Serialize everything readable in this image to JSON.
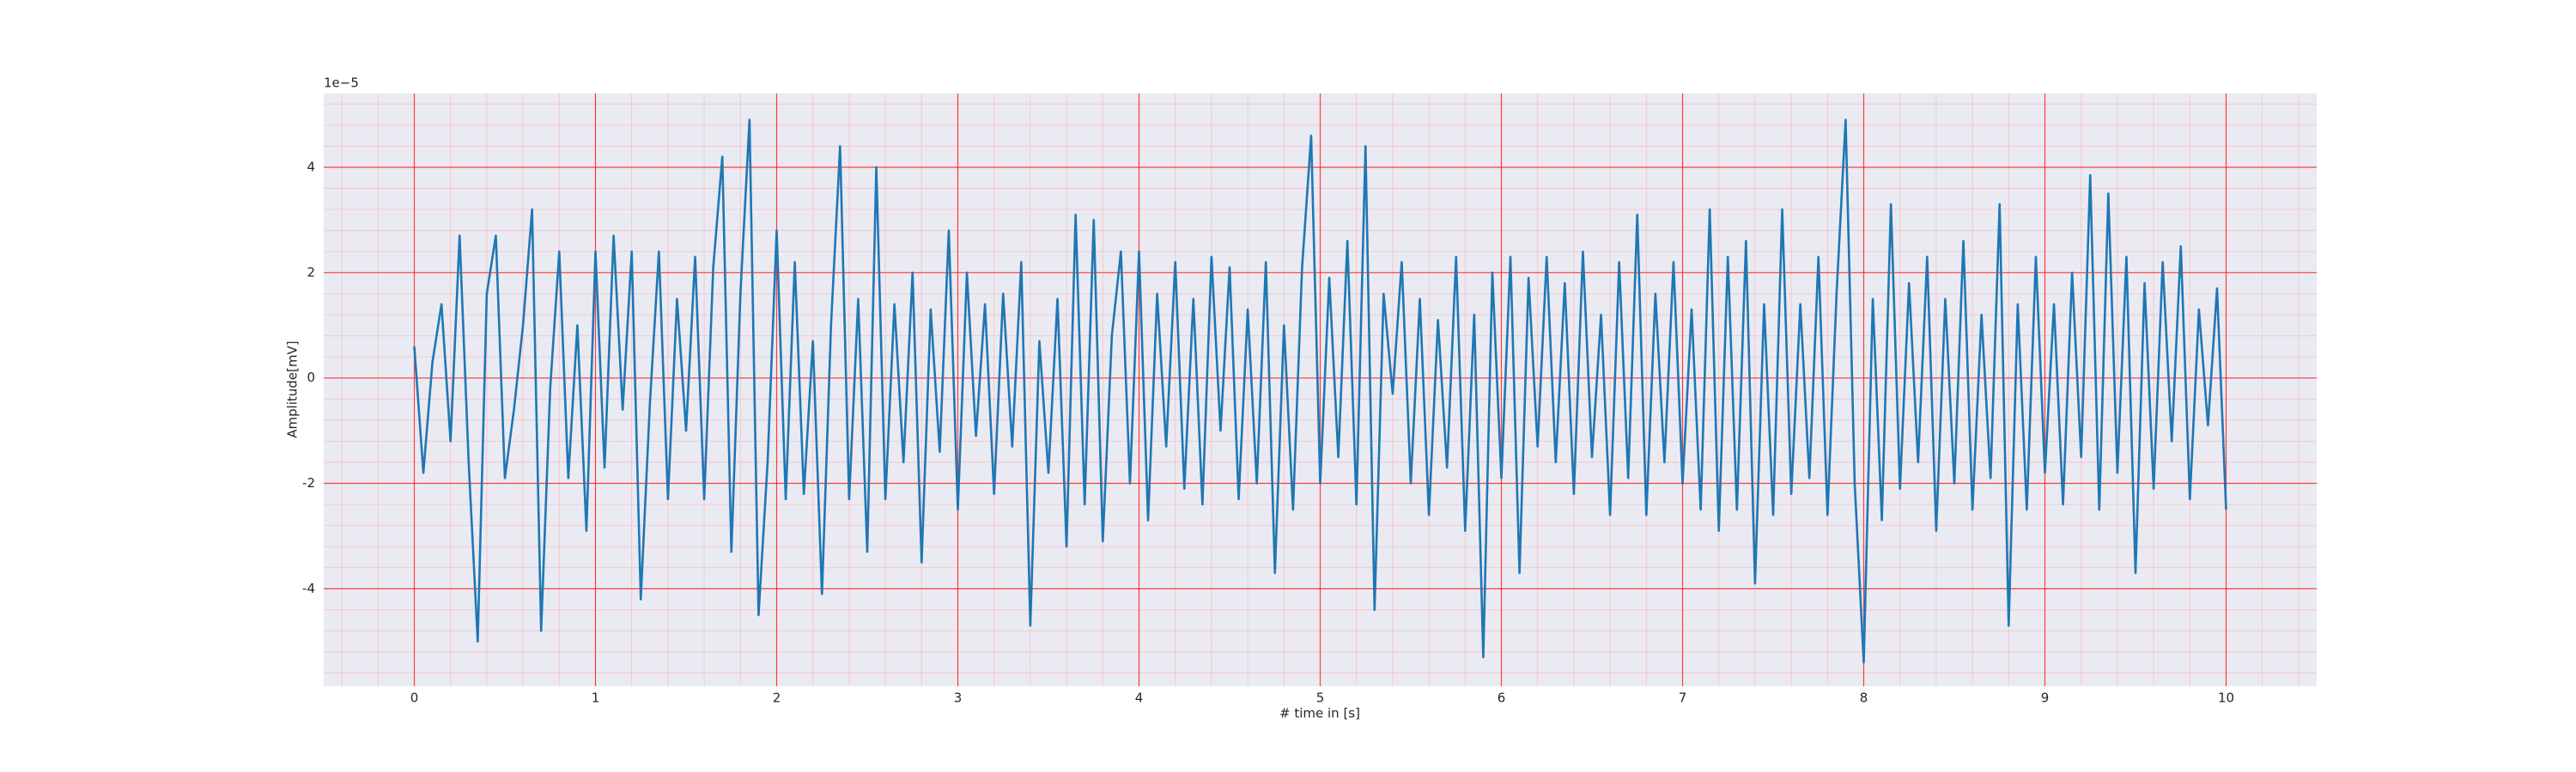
{
  "chart_data": {
    "type": "line",
    "xlabel": "# time in [s]",
    "ylabel": "Amplitude[mV]",
    "offset_text": "1e−5",
    "color": "#1f77b4",
    "grid": true,
    "xlim": [
      -0.5,
      10.5
    ],
    "xticks": [
      0,
      1,
      2,
      3,
      4,
      5,
      6,
      7,
      8,
      9,
      10
    ],
    "ylim": [
      -5.85,
      5.4
    ],
    "yticks": [
      -4,
      -2,
      0,
      2,
      4
    ],
    "x": [
      0,
      0.05,
      0.1,
      0.15,
      0.2,
      0.25,
      0.3,
      0.35,
      0.4,
      0.45,
      0.5,
      0.55,
      0.6,
      0.65,
      0.7,
      0.75,
      0.8,
      0.85,
      0.9,
      0.95,
      1,
      1.05,
      1.1,
      1.15,
      1.2,
      1.25,
      1.3,
      1.35,
      1.4,
      1.45,
      1.5,
      1.55,
      1.6,
      1.65,
      1.7,
      1.75,
      1.8,
      1.85,
      1.9,
      1.95,
      2,
      2.05,
      2.1,
      2.15,
      2.2,
      2.25,
      2.3,
      2.35,
      2.4,
      2.45,
      2.5,
      2.55,
      2.6,
      2.65,
      2.7,
      2.75,
      2.8,
      2.85,
      2.9,
      2.95,
      3,
      3.05,
      3.1,
      3.15,
      3.2,
      3.25,
      3.3,
      3.35,
      3.4,
      3.45,
      3.5,
      3.55,
      3.6,
      3.65,
      3.7,
      3.75,
      3.8,
      3.85,
      3.9,
      3.95,
      4,
      4.05,
      4.1,
      4.15,
      4.2,
      4.25,
      4.3,
      4.35,
      4.4,
      4.45,
      4.5,
      4.55,
      4.6,
      4.65,
      4.7,
      4.75,
      4.8,
      4.85,
      4.9,
      4.95,
      5,
      5.05,
      5.1,
      5.15,
      5.2,
      5.25,
      5.3,
      5.35,
      5.4,
      5.45,
      5.5,
      5.55,
      5.6,
      5.65,
      5.7,
      5.75,
      5.8,
      5.85,
      5.9,
      5.95,
      6,
      6.05,
      6.1,
      6.15,
      6.2,
      6.25,
      6.3,
      6.35,
      6.4,
      6.45,
      6.5,
      6.55,
      6.6,
      6.65,
      6.7,
      6.75,
      6.8,
      6.85,
      6.9,
      6.95,
      7,
      7.05,
      7.1,
      7.15,
      7.2,
      7.25,
      7.3,
      7.35,
      7.4,
      7.45,
      7.5,
      7.55,
      7.6,
      7.65,
      7.7,
      7.75,
      7.8,
      7.85,
      7.9,
      7.95,
      8,
      8.05,
      8.1,
      8.15,
      8.2,
      8.25,
      8.3,
      8.35,
      8.4,
      8.45,
      8.5,
      8.55,
      8.6,
      8.65,
      8.7,
      8.75,
      8.8,
      8.85,
      8.9,
      8.95,
      9,
      9.05,
      9.1,
      9.15,
      9.2,
      9.25,
      9.3,
      9.35,
      9.4,
      9.45,
      9.5,
      9.55,
      9.6,
      9.65,
      9.7,
      9.75,
      9.8,
      9.85,
      9.9,
      9.95,
      10
    ],
    "values": [
      0.6,
      -1.8,
      0.3,
      1.4,
      -1.2,
      2.7,
      -1.6,
      -5.0,
      1.6,
      2.7,
      -1.9,
      -0.6,
      1.0,
      3.2,
      -4.8,
      -0.2,
      2.4,
      -1.9,
      1.0,
      -2.9,
      2.4,
      -1.7,
      2.7,
      -0.6,
      2.4,
      -4.2,
      -0.5,
      2.4,
      -2.3,
      1.5,
      -1.0,
      2.3,
      -2.3,
      2.1,
      4.2,
      -3.3,
      1.6,
      4.9,
      -4.5,
      -1.6,
      2.8,
      -2.3,
      2.2,
      -2.2,
      0.7,
      -4.1,
      1.0,
      4.4,
      -2.3,
      1.5,
      -3.3,
      4.0,
      -2.3,
      1.4,
      -1.6,
      2.0,
      -3.5,
      1.3,
      -1.4,
      2.8,
      -2.5,
      2.0,
      -1.1,
      1.4,
      -2.2,
      1.6,
      -1.3,
      2.2,
      -4.7,
      0.7,
      -1.8,
      1.5,
      -3.2,
      3.1,
      -2.4,
      3.0,
      -3.1,
      0.8,
      2.4,
      -2.0,
      2.4,
      -2.7,
      1.6,
      -1.3,
      2.2,
      -2.1,
      1.5,
      -2.4,
      2.3,
      -1.0,
      2.1,
      -2.3,
      1.3,
      -2.0,
      2.2,
      -3.7,
      1.0,
      -2.5,
      2.1,
      4.6,
      -2.0,
      1.9,
      -1.5,
      2.6,
      -2.4,
      4.4,
      -4.4,
      1.6,
      -0.3,
      2.2,
      -2.0,
      1.5,
      -2.6,
      1.1,
      -1.7,
      2.3,
      -2.9,
      1.2,
      -5.3,
      2.0,
      -1.9,
      2.3,
      -3.7,
      1.9,
      -1.3,
      2.3,
      -1.6,
      1.8,
      -2.2,
      2.4,
      -1.5,
      1.2,
      -2.6,
      2.2,
      -1.9,
      3.1,
      -2.6,
      1.6,
      -1.6,
      2.2,
      -2.0,
      1.3,
      -2.5,
      3.2,
      -2.9,
      2.3,
      -2.5,
      2.6,
      -3.9,
      1.4,
      -2.6,
      3.2,
      -2.2,
      1.4,
      -1.9,
      2.3,
      -2.6,
      1.6,
      4.9,
      -2.0,
      -5.4,
      1.5,
      -2.7,
      3.3,
      -2.1,
      1.8,
      -1.6,
      2.3,
      -2.9,
      1.5,
      -2.0,
      2.6,
      -2.5,
      1.2,
      -1.9,
      3.3,
      -4.7,
      1.4,
      -2.5,
      2.3,
      -1.8,
      1.4,
      -2.4,
      2.0,
      -1.5,
      3.85,
      -2.5,
      3.5,
      -1.8,
      2.3,
      -3.7,
      1.8,
      -2.1,
      2.2,
      -1.2,
      2.5,
      -2.3,
      1.3,
      -0.9,
      1.7,
      -2.5
    ]
  }
}
